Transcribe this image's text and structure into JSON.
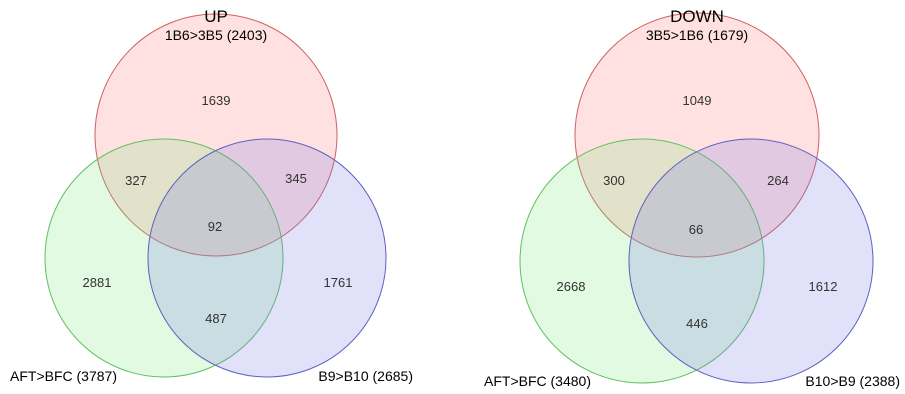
{
  "venn_left": {
    "title": "UP",
    "sets": {
      "top": {
        "label": "1B6>3B5 (2403)",
        "color": "#d04040"
      },
      "left": {
        "label": "AFT>BFC (3787)",
        "color": "#40c040"
      },
      "right": {
        "label": "B9>B10 (2685)",
        "color": "#4040c0"
      }
    },
    "regions": {
      "top_only": "1639",
      "top_left": "327",
      "top_right": "345",
      "all": "92",
      "left_only": "2881",
      "right_only": "1761",
      "left_right": "487"
    }
  },
  "venn_right": {
    "title": "DOWN",
    "sets": {
      "top": {
        "label": "3B5>1B6 (1679)",
        "color": "#d04040"
      },
      "left": {
        "label": "AFT>BFC (3480)",
        "color": "#40c040"
      },
      "right": {
        "label": "B10>B9 (2388)",
        "color": "#4040c0"
      }
    },
    "regions": {
      "top_only": "1049",
      "top_left": "300",
      "top_right": "264",
      "all": "66",
      "left_only": "2668",
      "right_only": "1612",
      "left_right": "446"
    }
  }
}
